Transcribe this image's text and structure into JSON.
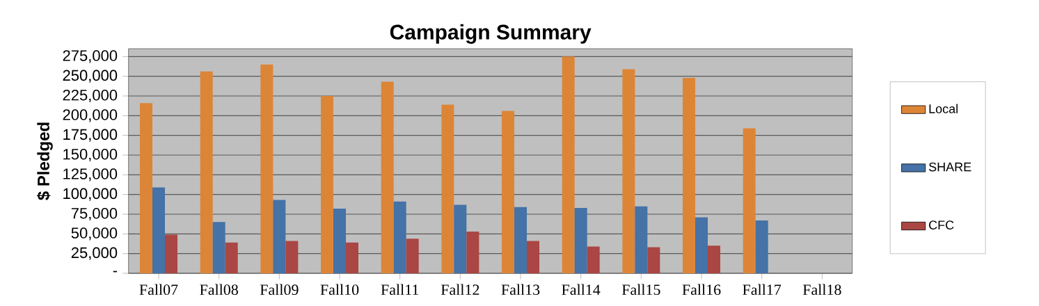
{
  "chart_data": {
    "type": "bar",
    "title": "Campaign Summary",
    "ylabel": "$ Pledged",
    "categories": [
      "Fall07",
      "Fall08",
      "Fall09",
      "Fall10",
      "Fall11",
      "Fall12",
      "Fall13",
      "Fall14",
      "Fall15",
      "Fall16",
      "Fall17",
      "Fall18"
    ],
    "series": [
      {
        "name": "Local",
        "color": "#dd8537",
        "values": [
          216000,
          256000,
          265000,
          225000,
          243000,
          214000,
          206000,
          275000,
          259000,
          248000,
          184000,
          null
        ]
      },
      {
        "name": "SHARE",
        "color": "#4572a7",
        "values": [
          109000,
          65000,
          93000,
          82000,
          91000,
          87000,
          84000,
          83000,
          85000,
          71000,
          67000,
          null
        ]
      },
      {
        "name": "CFC",
        "color": "#aa4643",
        "values": [
          49000,
          39000,
          41000,
          39000,
          44000,
          53000,
          41000,
          34000,
          33000,
          35000,
          null,
          null
        ]
      }
    ],
    "ylim": [
      0,
      285000
    ],
    "yticks": [
      {
        "value": 0,
        "label": "-"
      },
      {
        "value": 25000,
        "label": "25,000"
      },
      {
        "value": 50000,
        "label": "50,000"
      },
      {
        "value": 75000,
        "label": "75,000"
      },
      {
        "value": 100000,
        "label": "100,000"
      },
      {
        "value": 125000,
        "label": "125,000"
      },
      {
        "value": 150000,
        "label": "150,000"
      },
      {
        "value": 175000,
        "label": "175,000"
      },
      {
        "value": 200000,
        "label": "200,000"
      },
      {
        "value": 225000,
        "label": "225,000"
      },
      {
        "value": 250000,
        "label": "250,000"
      },
      {
        "value": 275000,
        "label": "275,000"
      }
    ],
    "grid": "y",
    "legend": "right"
  }
}
